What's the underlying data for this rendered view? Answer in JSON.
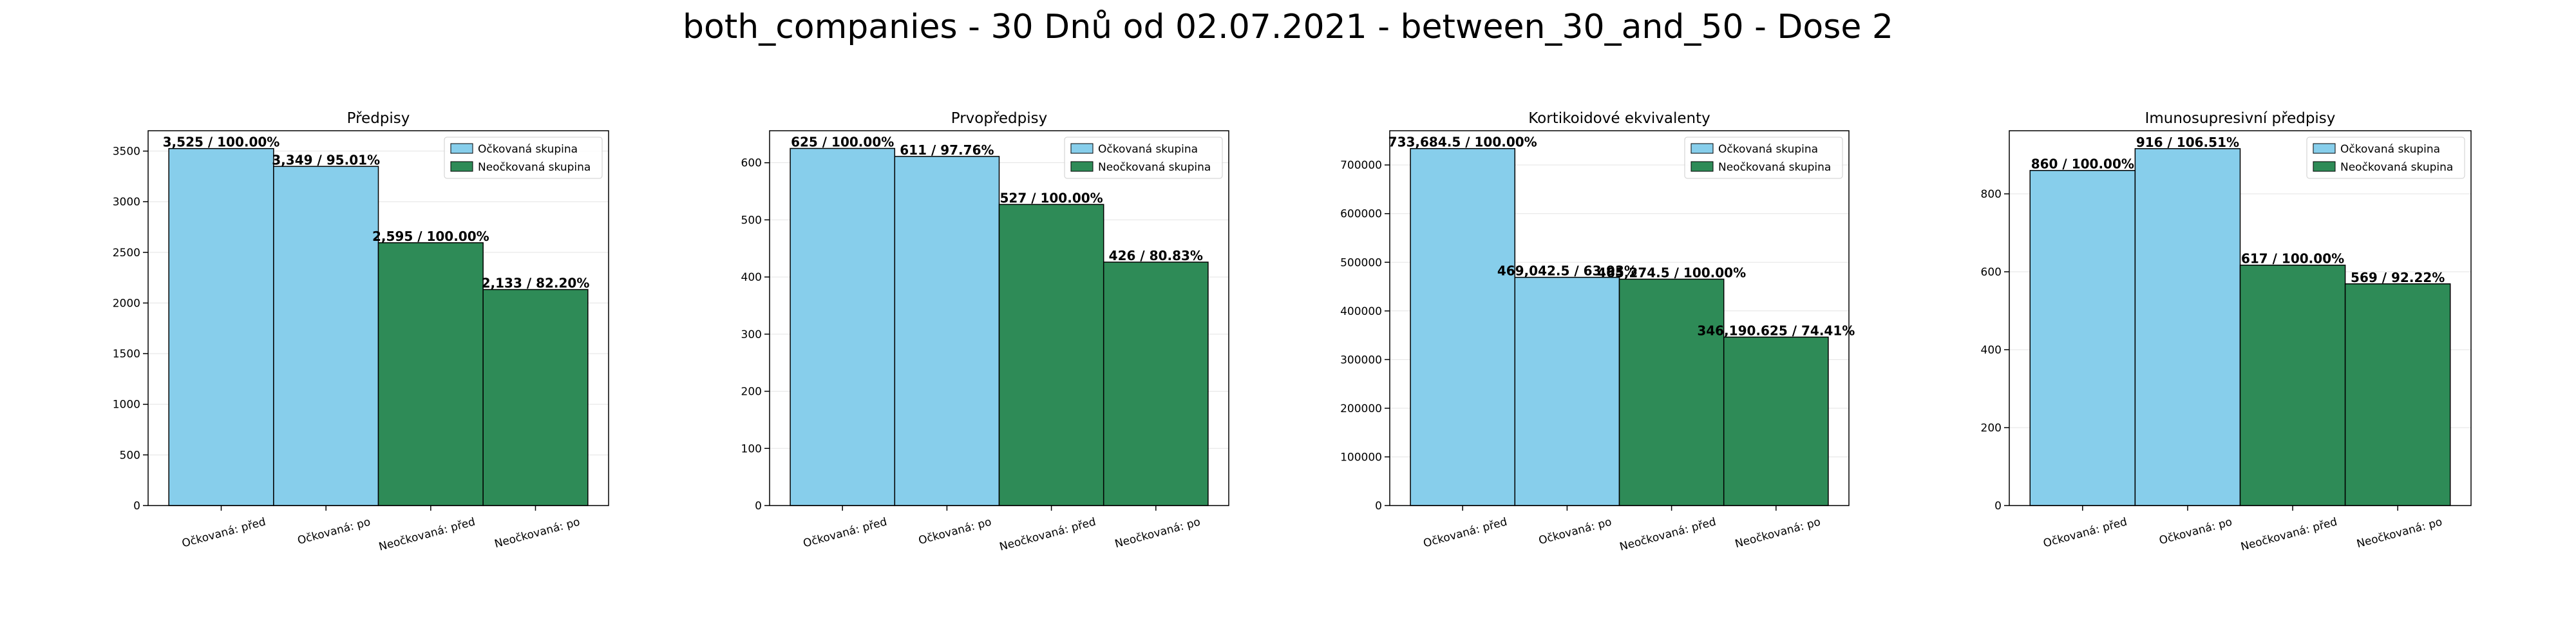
{
  "suptitle": "both_companies - 30 Dnů od 02.07.2021 - between_30_and_50 - Dose 2",
  "colors": {
    "vaccinated": "#87ceeb",
    "unvaccinated": "#2e8b57"
  },
  "chart_data": [
    {
      "type": "bar",
      "title": "Předpisy",
      "categories": [
        "Očkovaná: před",
        "Očkovaná: po",
        "Neočkovaná: před",
        "Neočkovaná: po"
      ],
      "values": [
        3525,
        3349,
        2595,
        2133
      ],
      "bar_labels": [
        "3,525 / 100.00%",
        "3,349 / 95.01%",
        "2,595 / 100.00%",
        "2,133 / 82.20%"
      ],
      "groups": [
        "vaccinated",
        "vaccinated",
        "unvaccinated",
        "unvaccinated"
      ],
      "legend": [
        "Očkovaná skupina",
        "Neočkovaná skupina"
      ],
      "legend_position": "top-right",
      "ylim": [
        0,
        3701
      ],
      "yticks": [
        0,
        500,
        1000,
        1500,
        2000,
        2500,
        3000,
        3500
      ],
      "grid": true
    },
    {
      "type": "bar",
      "title": "Prvopředpisy",
      "categories": [
        "Očkovaná: před",
        "Očkovaná: po",
        "Neočkovaná: před",
        "Neočkovaná: po"
      ],
      "values": [
        625,
        611,
        527,
        426
      ],
      "bar_labels": [
        "625 / 100.00%",
        "611 / 97.76%",
        "527 / 100.00%",
        "426 / 80.83%"
      ],
      "groups": [
        "vaccinated",
        "vaccinated",
        "unvaccinated",
        "unvaccinated"
      ],
      "legend": [
        "Očkovaná skupina",
        "Neočkovaná skupina"
      ],
      "legend_position": "top-right",
      "ylim": [
        0,
        656
      ],
      "yticks": [
        0,
        100,
        200,
        300,
        400,
        500,
        600
      ],
      "grid": true
    },
    {
      "type": "bar",
      "title": "Kortikoidové ekvivalenty",
      "categories": [
        "Očkovaná: před",
        "Očkovaná: po",
        "Neočkovaná: před",
        "Neočkovaná: po"
      ],
      "values": [
        733684.5,
        469042.5,
        465274.5,
        346190.625
      ],
      "bar_labels": [
        "733,684.5 / 100.00%",
        "469,042.5 / 63.93%",
        "465,274.5 / 100.00%",
        "346,190.625 / 74.41%"
      ],
      "groups": [
        "vaccinated",
        "vaccinated",
        "unvaccinated",
        "unvaccinated"
      ],
      "legend": [
        "Očkovaná skupina",
        "Neočkovaná skupina"
      ],
      "legend_position": "top-right",
      "ylim": [
        0,
        770369
      ],
      "yticks": [
        0,
        100000,
        200000,
        300000,
        400000,
        500000,
        600000,
        700000
      ],
      "grid": true
    },
    {
      "type": "bar",
      "title": "Imunosupresivní předpisy",
      "categories": [
        "Očkovaná: před",
        "Očkovaná: po",
        "Neočkovaná: před",
        "Neočkovaná: po"
      ],
      "values": [
        860,
        916,
        617,
        569
      ],
      "bar_labels": [
        "860 / 100.00%",
        "916 / 106.51%",
        "617 / 100.00%",
        "569 / 92.22%"
      ],
      "groups": [
        "vaccinated",
        "vaccinated",
        "unvaccinated",
        "unvaccinated"
      ],
      "legend": [
        "Očkovaná skupina",
        "Neočkovaná skupina"
      ],
      "legend_position": "top-right",
      "ylim": [
        0,
        962
      ],
      "yticks": [
        0,
        200,
        400,
        600,
        800
      ],
      "grid": true
    }
  ]
}
